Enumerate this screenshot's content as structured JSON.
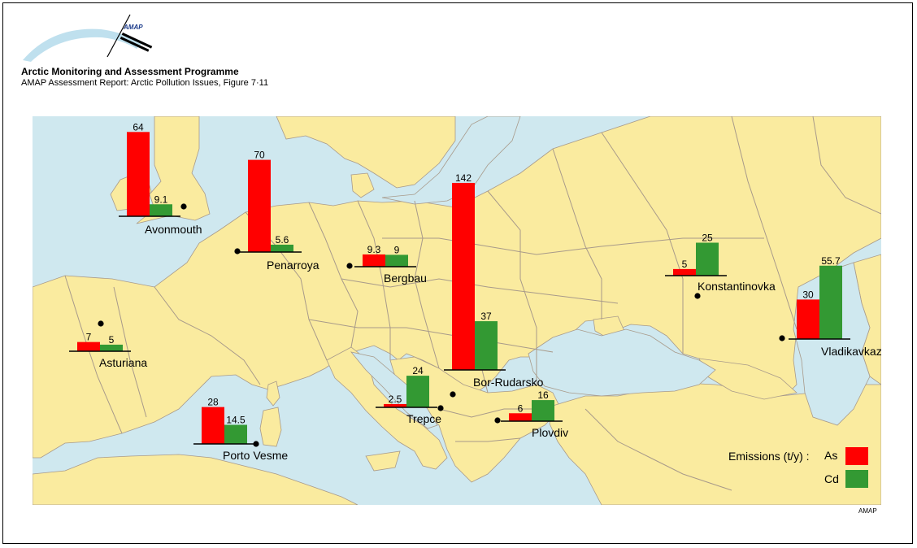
{
  "header": {
    "org_title": "Arctic Monitoring and Assessment Programme",
    "report_title": "AMAP Assessment Report: Arctic Pollution Issues, Figure 7·11",
    "logo_text": "AMAP"
  },
  "footer": {
    "credit": "AMAP"
  },
  "colors": {
    "land": "#faeb9f",
    "sea": "#cfe8ef",
    "border": "#a89a8a",
    "As": "#ff0000",
    "Cd": "#339933"
  },
  "legend": {
    "title": "Emissions (t/y) :",
    "as_label": "As",
    "cd_label": "Cd"
  },
  "chart_data": {
    "type": "bar",
    "unit": "t/y",
    "series": [
      {
        "name": "As",
        "color": "#ff0000"
      },
      {
        "name": "Cd",
        "color": "#339933"
      }
    ],
    "sites": [
      {
        "name": "Avonmouth",
        "As": 64,
        "As_label": "64",
        "Cd": 9.1,
        "Cd_label": "9.1"
      },
      {
        "name": "Penarroya",
        "As": 70,
        "As_label": "70",
        "Cd": 5.6,
        "Cd_label": "5.6"
      },
      {
        "name": "Bergbau",
        "As": 9.3,
        "As_label": "9.3",
        "Cd": 9,
        "Cd_label": "9"
      },
      {
        "name": "Asturiana",
        "As": 7,
        "As_label": "7",
        "Cd": 5,
        "Cd_label": "5"
      },
      {
        "name": "Porto Vesme",
        "As": 28,
        "As_label": "28",
        "Cd": 14.5,
        "Cd_label": "14.5"
      },
      {
        "name": "Trepce",
        "As": 2.5,
        "As_label": "2.5",
        "Cd": 24,
        "Cd_label": "24"
      },
      {
        "name": "Bor-Rudarsko",
        "As": 142,
        "As_label": "142",
        "Cd": 37,
        "Cd_label": "37"
      },
      {
        "name": "Plovdiv",
        "As": 6,
        "As_label": "6",
        "Cd": 16,
        "Cd_label": "16"
      },
      {
        "name": "Konstantinovka",
        "As": 5,
        "As_label": "5",
        "Cd": 25,
        "Cd_label": "25"
      },
      {
        "name": "Vladikavkaz",
        "As": 30,
        "As_label": "30",
        "Cd": 55.7,
        "Cd_label": "55.7"
      }
    ]
  }
}
